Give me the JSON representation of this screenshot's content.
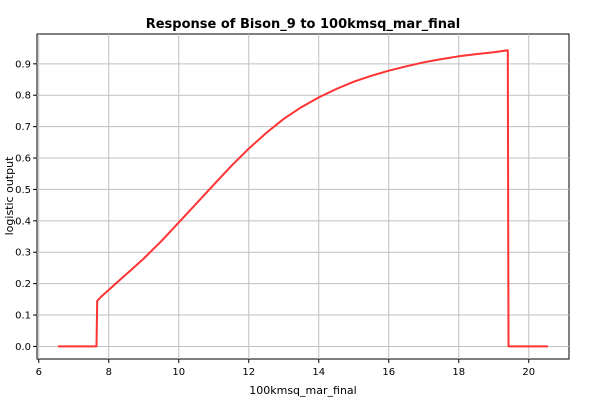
{
  "chart_data": {
    "type": "line",
    "title": "Response of Bison_9 to 100kmsq_mar_final",
    "xlabel": "100kmsq_mar_final",
    "ylabel": "logistic output",
    "xlim": [
      5.95,
      21.15
    ],
    "ylim": [
      -0.04,
      0.995
    ],
    "x_ticks": [
      6,
      8,
      10,
      12,
      14,
      16,
      18,
      20
    ],
    "y_ticks": [
      0.0,
      0.1,
      0.2,
      0.3,
      0.4,
      0.5,
      0.6,
      0.7,
      0.8,
      0.9
    ],
    "y_tick_labels": [
      "0.0",
      "0.1",
      "0.2",
      "0.3",
      "0.4",
      "0.5",
      "0.6",
      "0.7",
      "0.8",
      "0.9"
    ],
    "grid": true,
    "series": [
      {
        "color": "#ff3333",
        "x": [
          6.55,
          7.65,
          7.67,
          7.8,
          8.2,
          8.6,
          9.0,
          9.5,
          10.0,
          10.5,
          11.0,
          11.5,
          12.0,
          12.5,
          13.0,
          13.5,
          14.0,
          14.5,
          15.0,
          15.5,
          16.0,
          16.5,
          17.0,
          17.5,
          18.0,
          18.5,
          19.0,
          19.4,
          19.42,
          20.55
        ],
        "y": [
          0.0,
          0.0,
          0.145,
          0.16,
          0.2,
          0.24,
          0.28,
          0.335,
          0.395,
          0.455,
          0.515,
          0.575,
          0.63,
          0.68,
          0.725,
          0.762,
          0.793,
          0.82,
          0.843,
          0.862,
          0.878,
          0.892,
          0.905,
          0.915,
          0.924,
          0.931,
          0.937,
          0.943,
          0.0,
          0.0
        ]
      }
    ]
  }
}
